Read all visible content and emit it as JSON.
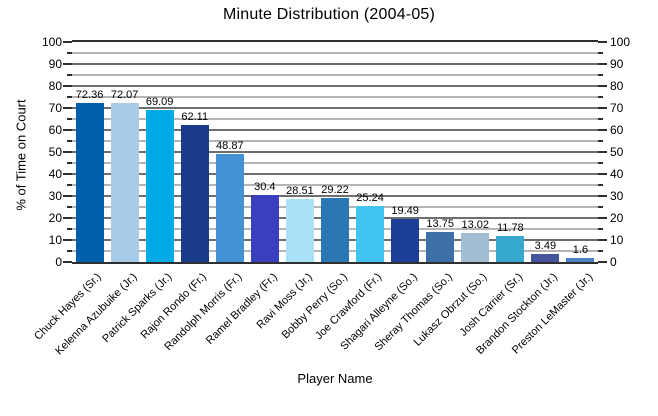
{
  "chart_data": {
    "type": "bar",
    "title": "Minute Distribution (2004-05)",
    "xlabel": "Player Name",
    "ylabel": "% of Time on Court",
    "ylim": [
      0,
      100
    ],
    "y_major_ticks": [
      0,
      10,
      20,
      30,
      40,
      50,
      60,
      70,
      80,
      90,
      100
    ],
    "y_minor_tick_step": 5,
    "y_axis_mirrored_right": true,
    "grid": "horizontal, dark major lines every 10, light minor lines every 5",
    "legend": "none",
    "categories": [
      "Chuck Hayes (Sr.)",
      "Kelenna Azubuike (Jr.)",
      "Patrick Sparks (Jr.)",
      "Rajon Rondo (Fr.)",
      "Randolph Morris (Fr.)",
      "Ramel Bradley (Fr.)",
      "Ravi Moss (Jr.)",
      "Bobby Perry (So.)",
      "Joe Crawford (Fr.)",
      "Shagari Alleyne (So.)",
      "Sheray Thomas (So.)",
      "Lukasz Obrzut (So.)",
      "Josh Carrier (Sr.)",
      "Brandon Stockton (Jr.)",
      "Preston LeMaster (Jr.)"
    ],
    "values": [
      72.36,
      72.07,
      69.09,
      62.11,
      48.87,
      30.4,
      28.51,
      29.22,
      25.24,
      19.49,
      13.75,
      13.02,
      11.78,
      3.49,
      1.6
    ],
    "bar_labels": [
      "72.36",
      "72.07",
      "69.09",
      "62.11",
      "48.87",
      "30.4",
      "28.51",
      "29.22",
      "25.24",
      "19.49",
      "13.75",
      "13.02",
      "11.78",
      "3.49",
      "1.6"
    ],
    "bar_colors": [
      "#005fa8",
      "#a8cce8",
      "#00aae6",
      "#1a3a8c",
      "#4292d6",
      "#3a40bd",
      "#a9e1f7",
      "#2a77b3",
      "#40c4f0",
      "#1e3f97",
      "#3d6fa6",
      "#a2bcd3",
      "#36a7cf",
      "#46549c",
      "#4d81c3"
    ]
  },
  "colors": {
    "background": "#ffffff",
    "major_gridline": "#6e6e6e",
    "minor_gridline": "#b5b5b5",
    "axis": "#2f2f2f",
    "text": "#000000"
  }
}
